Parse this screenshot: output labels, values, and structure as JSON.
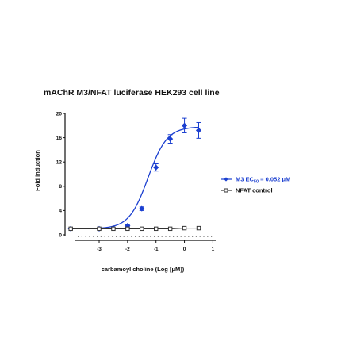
{
  "chart_data": {
    "type": "line",
    "title": "mAChR M3/NFAT luciferase HEK293 cell line",
    "xlabel": "carbamoyl choline (Log [μM])",
    "ylabel": "Fold induction",
    "xlim": [
      -4.2,
      1.1
    ],
    "ylim": [
      0,
      20
    ],
    "x_ticks": [
      -3,
      -2,
      -1,
      0,
      1
    ],
    "x_tick_labels": [
      "-3",
      "-2",
      "-1",
      "0",
      "1"
    ],
    "y_ticks": [
      0,
      4,
      8,
      12,
      16,
      20
    ],
    "y_tick_labels": [
      "0",
      "4",
      "8",
      "12",
      "16",
      "20"
    ],
    "grid": false,
    "legend_position": "right",
    "series": [
      {
        "name_prefix": "M3 EC",
        "name_subscript": "50",
        "name_suffix": " = 0.052 μM",
        "color": "#1b3fd0",
        "marker": "filled-diamond",
        "x": [
          -4.0,
          -3.0,
          -2.5,
          -2.0,
          -1.5,
          -1.0,
          -0.5,
          0.0,
          0.5
        ],
        "y": [
          1.0,
          1.0,
          1.1,
          1.5,
          4.3,
          11.1,
          15.8,
          18.0,
          17.2
        ],
        "err": [
          0,
          0,
          0,
          0.2,
          0.3,
          0.6,
          0.7,
          1.2,
          1.3
        ],
        "fit": {
          "bottom": 1.0,
          "top": 17.8,
          "log_ec50": -1.28,
          "hill": 1.3
        }
      },
      {
        "name": "NFAT control",
        "color": "#333333",
        "marker": "open-square",
        "x": [
          -4.0,
          -3.0,
          -2.5,
          -2.0,
          -1.5,
          -1.0,
          -0.5,
          0.0,
          0.5
        ],
        "y": [
          1.0,
          1.0,
          1.0,
          1.0,
          1.0,
          1.0,
          1.0,
          1.1,
          1.1
        ],
        "err": [
          0,
          0,
          0,
          0,
          0,
          0,
          0,
          0,
          0
        ]
      }
    ]
  }
}
